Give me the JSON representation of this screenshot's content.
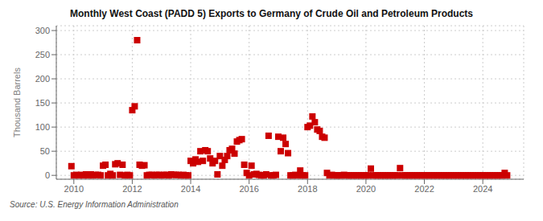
{
  "chart_data": {
    "type": "scatter",
    "title": "Monthly West Coast (PADD 5) Exports to Germany of Crude Oil and Petroleum Products",
    "ylabel": "Thousand Barrels",
    "source": "Source: U.S. Energy Information Administration",
    "color": "#cc0000",
    "marker": "square",
    "grid": true,
    "xlim": [
      2009.4,
      2025.4
    ],
    "xticks": [
      2010,
      2012,
      2014,
      2016,
      2018,
      2020,
      2022,
      2024
    ],
    "ylim": [
      -8,
      310
    ],
    "yticks": [
      0,
      50,
      100,
      150,
      200,
      250,
      300
    ],
    "x": [
      2009.917,
      2010.0,
      2010.083,
      2010.167,
      2010.25,
      2010.333,
      2010.417,
      2010.5,
      2010.583,
      2010.667,
      2010.75,
      2010.833,
      2010.917,
      2011.0,
      2011.083,
      2011.167,
      2011.25,
      2011.333,
      2011.417,
      2011.5,
      2011.583,
      2011.667,
      2011.75,
      2011.833,
      2011.917,
      2012.0,
      2012.083,
      2012.167,
      2012.25,
      2012.333,
      2012.417,
      2012.5,
      2012.583,
      2012.667,
      2012.75,
      2012.833,
      2012.917,
      2013.0,
      2013.083,
      2013.167,
      2013.25,
      2013.333,
      2013.417,
      2013.5,
      2013.583,
      2013.667,
      2013.75,
      2013.833,
      2013.917,
      2014.0,
      2014.083,
      2014.167,
      2014.25,
      2014.333,
      2014.417,
      2014.5,
      2014.583,
      2014.667,
      2014.75,
      2014.833,
      2014.917,
      2015.0,
      2015.083,
      2015.167,
      2015.25,
      2015.333,
      2015.417,
      2015.5,
      2015.583,
      2015.667,
      2015.75,
      2015.833,
      2015.917,
      2016.0,
      2016.083,
      2016.167,
      2016.25,
      2016.333,
      2016.417,
      2016.5,
      2016.583,
      2016.667,
      2016.75,
      2016.833,
      2016.917,
      2017.0,
      2017.083,
      2017.167,
      2017.25,
      2017.333,
      2017.417,
      2017.5,
      2017.583,
      2017.667,
      2017.75,
      2017.833,
      2017.917,
      2018.0,
      2018.083,
      2018.167,
      2018.25,
      2018.333,
      2018.417,
      2018.5,
      2018.583,
      2018.667,
      2018.75,
      2018.833,
      2018.917,
      2019.0,
      2019.083,
      2019.167,
      2019.25,
      2019.333,
      2019.417,
      2019.5,
      2019.583,
      2019.667,
      2019.75,
      2019.833,
      2019.917,
      2020.0,
      2020.083,
      2020.167,
      2020.25,
      2020.333,
      2020.417,
      2020.5,
      2020.583,
      2020.667,
      2020.75,
      2020.833,
      2020.917,
      2021.0,
      2021.083,
      2021.167,
      2021.25,
      2021.333,
      2021.417,
      2021.5,
      2021.583,
      2021.667,
      2021.75,
      2021.833,
      2021.917,
      2022.0,
      2022.083,
      2022.167,
      2022.25,
      2022.333,
      2022.417,
      2022.5,
      2022.583,
      2022.667,
      2022.75,
      2022.833,
      2022.917,
      2023.0,
      2023.083,
      2023.167,
      2023.25,
      2023.333,
      2023.417,
      2023.5,
      2023.583,
      2023.667,
      2023.75,
      2023.833,
      2023.917,
      2024.0,
      2024.083,
      2024.167,
      2024.25,
      2024.333,
      2024.417,
      2024.5,
      2024.583,
      2024.667,
      2024.75,
      2024.833
    ],
    "values": [
      19,
      0,
      1,
      0,
      1,
      0,
      2,
      0,
      2,
      0,
      1,
      1,
      0,
      20,
      22,
      0,
      3,
      0,
      23,
      25,
      1,
      22,
      0,
      1,
      0,
      135,
      143,
      280,
      22,
      20,
      21,
      0,
      1,
      1,
      0,
      1,
      1,
      0,
      1,
      1,
      0,
      2,
      1,
      1,
      1,
      0,
      1,
      0,
      0,
      30,
      25,
      33,
      28,
      50,
      30,
      52,
      50,
      35,
      25,
      30,
      2,
      40,
      20,
      32,
      40,
      52,
      55,
      45,
      70,
      73,
      75,
      22,
      5,
      0,
      20,
      2,
      3,
      1,
      0,
      0,
      2,
      82,
      0,
      0,
      1,
      80,
      50,
      78,
      65,
      46,
      0,
      0,
      1,
      0,
      10,
      0,
      0,
      100,
      103,
      122,
      110,
      95,
      92,
      80,
      78,
      5,
      0,
      1,
      0,
      0,
      0,
      0,
      1,
      0,
      0,
      0,
      0,
      0,
      0,
      0,
      0,
      0,
      0,
      14,
      0,
      0,
      0,
      0,
      0,
      0,
      0,
      0,
      0,
      0,
      0,
      15,
      0,
      0,
      0,
      0,
      0,
      0,
      0,
      0,
      0,
      0,
      0,
      0,
      0,
      0,
      0,
      0,
      0,
      0,
      0,
      0,
      0,
      0,
      0,
      0,
      0,
      0,
      0,
      0,
      0,
      0,
      0,
      0,
      0,
      0,
      0,
      0,
      0,
      0,
      0,
      0,
      0,
      0,
      5,
      0
    ]
  }
}
